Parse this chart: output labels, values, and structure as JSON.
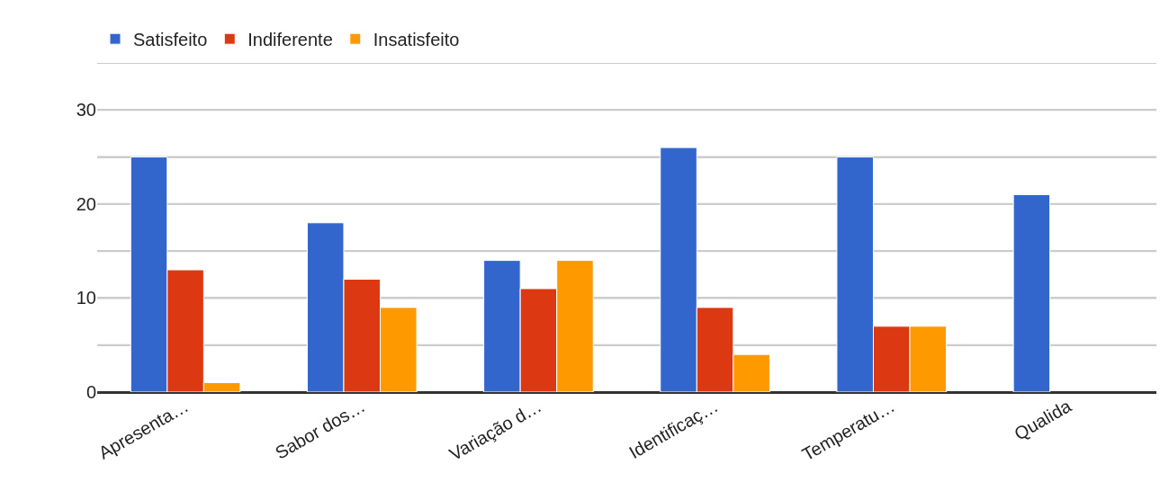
{
  "chart_data": {
    "type": "bar",
    "categories": [
      "Apresenta…",
      "Sabor dos…",
      "Variação d…",
      "Identificaç…",
      "Temperatu…",
      "Qualida"
    ],
    "series": [
      {
        "name": "Satisfeito",
        "color": "#3366cc",
        "values": [
          25,
          18,
          14,
          26,
          25,
          21
        ]
      },
      {
        "name": "Indiferente",
        "color": "#dc3912",
        "values": [
          13,
          12,
          11,
          9,
          7,
          null
        ]
      },
      {
        "name": "Insatisfeito",
        "color": "#ff9900",
        "values": [
          1,
          9,
          14,
          4,
          7,
          null
        ]
      }
    ],
    "ylim": [
      0,
      35
    ],
    "yticks": [
      0,
      {
        "value": 5,
        "label": null
      },
      10,
      {
        "value": 15,
        "label": null
      },
      20,
      {
        "value": 25,
        "label": null
      },
      30,
      {
        "value": 35,
        "label": null
      }
    ],
    "grid": "y",
    "legend": "top left"
  }
}
